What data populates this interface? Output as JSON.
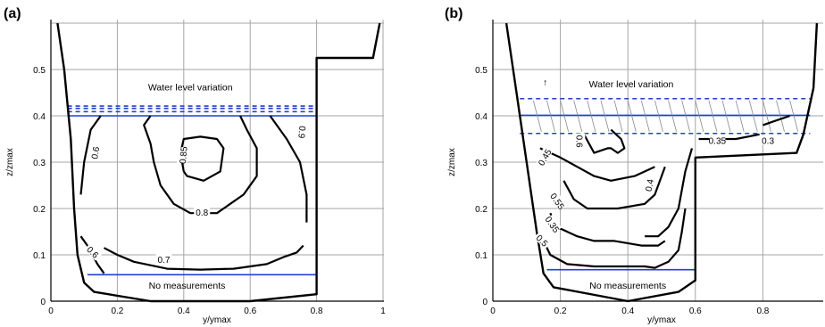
{
  "chart_data": [
    {
      "panel": "(a)",
      "type": "contour",
      "xlabel": "y/ymax",
      "ylabel": "z/zmax",
      "xlim": [
        0,
        1
      ],
      "ylim": [
        0,
        0.6
      ],
      "xticks": [
        "0",
        "0.2",
        "0.4",
        "0.6",
        "0.8",
        "1"
      ],
      "yticks": [
        "0",
        "0.1",
        "0.2",
        "0.3",
        "0.4",
        "0.5"
      ],
      "grid": true,
      "annotations": {
        "top": "Water level variation",
        "bottom": "No measurements"
      },
      "channel_wall": [
        [
          0.02,
          0.6
        ],
        [
          0.04,
          0.5
        ],
        [
          0.06,
          0.35
        ],
        [
          0.07,
          0.2
        ],
        [
          0.08,
          0.1
        ],
        [
          0.1,
          0.04
        ],
        [
          0.13,
          0.02
        ],
        [
          0.3,
          0.0
        ],
        [
          0.6,
          0.0
        ],
        [
          0.8,
          0.015
        ],
        [
          0.8,
          0.525
        ],
        [
          0.97,
          0.525
        ],
        [
          0.99,
          0.6
        ]
      ],
      "water_level_lines": [
        0.4,
        0.409,
        0.416,
        0.421
      ],
      "no_measurement_line": 0.057,
      "contours": [
        {
          "label": "0.6",
          "points": [
            [
              0.09,
              0.23
            ],
            [
              0.1,
              0.3
            ],
            [
              0.12,
              0.37
            ],
            [
              0.15,
              0.4
            ]
          ]
        },
        {
          "label": "0.85",
          "points": [
            [
              0.4,
              0.28
            ],
            [
              0.39,
              0.32
            ],
            [
              0.4,
              0.35
            ],
            [
              0.45,
              0.355
            ],
            [
              0.5,
              0.35
            ],
            [
              0.52,
              0.33
            ],
            [
              0.51,
              0.28
            ],
            [
              0.46,
              0.26
            ],
            [
              0.41,
              0.27
            ],
            [
              0.4,
              0.28
            ]
          ]
        },
        {
          "label": "0.8",
          "points": [
            [
              0.3,
              0.4
            ],
            [
              0.28,
              0.38
            ],
            [
              0.3,
              0.34
            ],
            [
              0.31,
              0.3
            ],
            [
              0.33,
              0.25
            ],
            [
              0.37,
              0.21
            ],
            [
              0.42,
              0.19
            ],
            [
              0.5,
              0.19
            ],
            [
              0.58,
              0.23
            ],
            [
              0.62,
              0.27
            ],
            [
              0.62,
              0.33
            ],
            [
              0.59,
              0.37
            ],
            [
              0.57,
              0.4
            ]
          ]
        },
        {
          "label": "0.9",
          "points": [
            [
              0.66,
              0.4
            ],
            [
              0.71,
              0.35
            ],
            [
              0.75,
              0.3
            ],
            [
              0.77,
              0.23
            ],
            [
              0.77,
              0.17
            ]
          ]
        },
        {
          "label": "0.6",
          "points": [
            [
              0.09,
              0.14
            ],
            [
              0.11,
              0.12
            ],
            [
              0.14,
              0.08
            ],
            [
              0.16,
              0.06
            ]
          ]
        },
        {
          "label": "0.7",
          "points": [
            [
              0.16,
              0.115
            ],
            [
              0.2,
              0.1
            ],
            [
              0.25,
              0.085
            ],
            [
              0.35,
              0.07
            ],
            [
              0.45,
              0.068
            ],
            [
              0.55,
              0.07
            ],
            [
              0.65,
              0.08
            ],
            [
              0.7,
              0.095
            ],
            [
              0.74,
              0.105
            ],
            [
              0.76,
              0.12
            ]
          ]
        }
      ],
      "contour_labels": [
        {
          "text": "0.6",
          "x": 0.135,
          "y": 0.32,
          "rot": -80
        },
        {
          "text": "0.85",
          "x": 0.4,
          "y": 0.315,
          "rot": -85
        },
        {
          "text": "0.8",
          "x": 0.455,
          "y": 0.19,
          "rot": 0
        },
        {
          "text": "0.9",
          "x": 0.755,
          "y": 0.365,
          "rot": 95
        },
        {
          "text": "0.6",
          "x": 0.125,
          "y": 0.105,
          "rot": 45
        },
        {
          "text": "0.7",
          "x": 0.34,
          "y": 0.088,
          "rot": 0
        }
      ]
    },
    {
      "panel": "(b)",
      "type": "contour",
      "xlabel": "y/ymax",
      "ylabel": "z/zmax",
      "xlim": [
        0,
        1
      ],
      "ylim": [
        0,
        0.6
      ],
      "xticks": [
        "0",
        "0.2",
        "0.4",
        "0.6",
        "0.8"
      ],
      "yticks": [
        "0",
        "0.1",
        "0.2",
        "0.3",
        "0.4",
        "0.5"
      ],
      "grid": true,
      "annotations": {
        "top": "Water level variation",
        "bottom": "No measurements",
        "arrow": "↑"
      },
      "channel_wall": [
        [
          0.04,
          0.6
        ],
        [
          0.07,
          0.45
        ],
        [
          0.1,
          0.3
        ],
        [
          0.13,
          0.15
        ],
        [
          0.15,
          0.06
        ],
        [
          0.18,
          0.03
        ],
        [
          0.4,
          0.0
        ],
        [
          0.55,
          0.02
        ],
        [
          0.6,
          0.045
        ],
        [
          0.6,
          0.31
        ],
        [
          0.9,
          0.32
        ],
        [
          0.92,
          0.36
        ],
        [
          0.95,
          0.46
        ],
        [
          0.96,
          0.6
        ]
      ],
      "water_level_lines": [
        0.362,
        0.401,
        0.437
      ],
      "no_measurement_line": 0.068,
      "contours": [
        {
          "label": "0.45",
          "points": [
            [
              0.14,
              0.33
            ],
            [
              0.2,
              0.31
            ],
            [
              0.25,
              0.29
            ],
            [
              0.3,
              0.27
            ],
            [
              0.35,
              0.26
            ],
            [
              0.42,
              0.27
            ],
            [
              0.48,
              0.29
            ]
          ]
        },
        {
          "label": "0.6",
          "points": [
            [
              0.27,
              0.36
            ],
            [
              0.3,
              0.32
            ],
            [
              0.34,
              0.33
            ],
            [
              0.35,
              0.33
            ],
            [
              0.37,
              0.32
            ],
            [
              0.39,
              0.33
            ],
            [
              0.38,
              0.35
            ],
            [
              0.35,
              0.37
            ]
          ]
        },
        {
          "label": "0.4",
          "points": [
            [
              0.59,
              0.33
            ],
            [
              0.57,
              0.28
            ],
            [
              0.55,
              0.2
            ],
            [
              0.52,
              0.16
            ],
            [
              0.49,
              0.14
            ],
            [
              0.45,
              0.14
            ]
          ]
        },
        {
          "label": "0.55",
          "points": [
            [
              0.21,
              0.26
            ],
            [
              0.24,
              0.22
            ],
            [
              0.28,
              0.2
            ],
            [
              0.3,
              0.2
            ],
            [
              0.37,
              0.2
            ],
            [
              0.45,
              0.21
            ],
            [
              0.48,
              0.23
            ],
            [
              0.5,
              0.27
            ],
            [
              0.51,
              0.29
            ]
          ]
        },
        {
          "label": "0.35",
          "points": [
            [
              0.17,
              0.19
            ],
            [
              0.19,
              0.16
            ],
            [
              0.25,
              0.14
            ],
            [
              0.3,
              0.13
            ],
            [
              0.36,
              0.13
            ],
            [
              0.44,
              0.12
            ],
            [
              0.49,
              0.12
            ],
            [
              0.51,
              0.13
            ]
          ]
        },
        {
          "label": "0.5",
          "points": [
            [
              0.15,
              0.13
            ],
            [
              0.17,
              0.1
            ],
            [
              0.22,
              0.08
            ],
            [
              0.3,
              0.075
            ],
            [
              0.37,
              0.075
            ],
            [
              0.45,
              0.075
            ],
            [
              0.48,
              0.072
            ],
            [
              0.52,
              0.085
            ],
            [
              0.55,
              0.11
            ],
            [
              0.56,
              0.15
            ],
            [
              0.57,
              0.2
            ]
          ]
        },
        {
          "label": "0.35",
          "points": [
            [
              0.61,
              0.35
            ],
            [
              0.65,
              0.35
            ],
            [
              0.72,
              0.35
            ],
            [
              0.79,
              0.36
            ]
          ]
        },
        {
          "label": "0.3",
          "points": [
            [
              0.8,
              0.38
            ],
            [
              0.84,
              0.39
            ],
            [
              0.88,
              0.4
            ]
          ]
        }
      ],
      "contour_labels": [
        {
          "text": "0.45",
          "x": 0.155,
          "y": 0.31,
          "rot": -60
        },
        {
          "text": "0.6",
          "x": 0.255,
          "y": 0.345,
          "rot": 90
        },
        {
          "text": "0.4",
          "x": 0.465,
          "y": 0.25,
          "rot": -80
        },
        {
          "text": "0.55",
          "x": 0.19,
          "y": 0.215,
          "rot": 55
        },
        {
          "text": "0.35",
          "x": 0.175,
          "y": 0.165,
          "rot": 55
        },
        {
          "text": "0.5",
          "x": 0.145,
          "y": 0.13,
          "rot": 45
        },
        {
          "text": "0.35",
          "x": 0.665,
          "y": 0.345,
          "rot": 0
        },
        {
          "text": "0.3",
          "x": 0.815,
          "y": 0.345,
          "rot": 0
        }
      ]
    }
  ]
}
